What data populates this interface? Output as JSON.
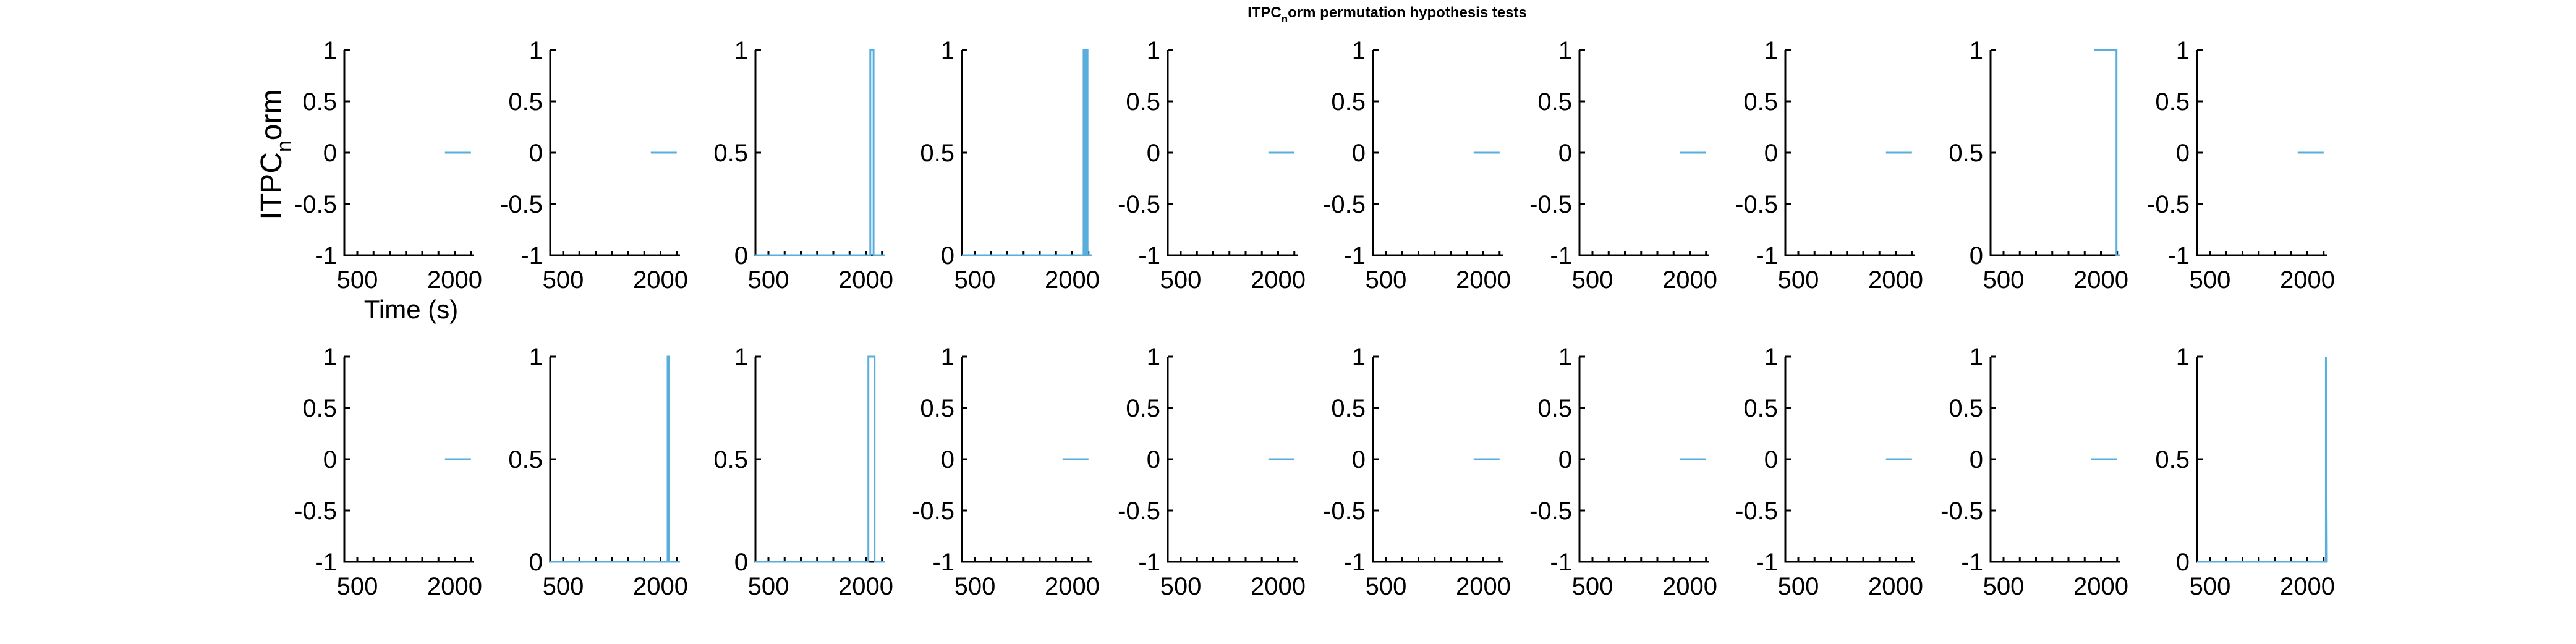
{
  "figure": {
    "title_main": "ITPC",
    "title_sub": "n",
    "title_rest": "orm permutation hypothesis tests"
  },
  "colors": {
    "series": "#5aaedc",
    "axis": "#000000"
  },
  "chart_data": {
    "type": "line",
    "title": "ITPC_norm permutation hypothesis tests",
    "ylabel": {
      "main": "ITPC",
      "sub": "n",
      "rest": "orm"
    },
    "xlabel": "Time (s)",
    "xlim": [
      300,
      2300
    ],
    "xticks": [
      500,
      2000
    ],
    "xtick_labels": [
      "500",
      "2000"
    ],
    "grid": false,
    "panels": [
      {
        "ylim": [
          -1,
          1
        ],
        "yticks": [
          -1,
          -0.5,
          0,
          0.5,
          1
        ],
        "ytick_labels": [
          "-1",
          "-0.5",
          "0",
          "0.5",
          "1"
        ],
        "x": [
          1850,
          2250
        ],
        "y": [
          0,
          0
        ]
      },
      {
        "ylim": [
          -1,
          1
        ],
        "yticks": [
          -1,
          -0.5,
          0,
          0.5,
          1
        ],
        "ytick_labels": [
          "-1",
          "-0.5",
          "0",
          "0.5",
          "1"
        ],
        "x": [
          1850,
          2250
        ],
        "y": [
          0,
          0
        ]
      },
      {
        "ylim": [
          0,
          1
        ],
        "yticks": [
          0,
          0.5,
          1
        ],
        "ytick_labels": [
          "0",
          "0.5",
          "1"
        ],
        "x": [
          300,
          2070,
          2070,
          2120,
          2120,
          2300
        ],
        "y": [
          0,
          0,
          1,
          1,
          0,
          0
        ]
      },
      {
        "ylim": [
          0,
          1
        ],
        "yticks": [
          0,
          0.5,
          1
        ],
        "ytick_labels": [
          "0",
          "0.5",
          "1"
        ],
        "x": [
          300,
          2175,
          2175,
          2190,
          2190,
          2220,
          2220,
          2235,
          2235,
          2300
        ],
        "y": [
          0,
          0,
          1,
          1,
          0,
          0,
          1,
          1,
          0,
          0
        ]
      },
      {
        "ylim": [
          -1,
          1
        ],
        "yticks": [
          -1,
          -0.5,
          0,
          0.5,
          1
        ],
        "ytick_labels": [
          "-1",
          "-0.5",
          "0",
          "0.5",
          "1"
        ],
        "x": [
          1850,
          2250
        ],
        "y": [
          0,
          0
        ]
      },
      {
        "ylim": [
          -1,
          1
        ],
        "yticks": [
          -1,
          -0.5,
          0,
          0.5,
          1
        ],
        "ytick_labels": [
          "-1",
          "-0.5",
          "0",
          "0.5",
          "1"
        ],
        "x": [
          1850,
          2250
        ],
        "y": [
          0,
          0
        ]
      },
      {
        "ylim": [
          -1,
          1
        ],
        "yticks": [
          -1,
          -0.5,
          0,
          0.5,
          1
        ],
        "ytick_labels": [
          "-1",
          "-0.5",
          "0",
          "0.5",
          "1"
        ],
        "x": [
          1850,
          2250
        ],
        "y": [
          0,
          0
        ]
      },
      {
        "ylim": [
          -1,
          1
        ],
        "yticks": [
          -1,
          -0.5,
          0,
          0.5,
          1
        ],
        "ytick_labels": [
          "-1",
          "-0.5",
          "0",
          "0.5",
          "1"
        ],
        "x": [
          1850,
          2250
        ],
        "y": [
          0,
          0
        ]
      },
      {
        "ylim": [
          0,
          1
        ],
        "yticks": [
          0,
          0.5,
          1
        ],
        "ytick_labels": [
          "0",
          "0.5",
          "1"
        ],
        "x": [
          1900,
          2240,
          2240,
          2300
        ],
        "y": [
          1,
          1,
          0,
          0
        ]
      },
      {
        "ylim": [
          -1,
          1
        ],
        "yticks": [
          -1,
          -0.5,
          0,
          0.5,
          1
        ],
        "ytick_labels": [
          "-1",
          "-0.5",
          "0",
          "0.5",
          "1"
        ],
        "x": [
          1850,
          2250
        ],
        "y": [
          0,
          0
        ]
      },
      {
        "ylim": [
          -1,
          1
        ],
        "yticks": [
          -1,
          -0.5,
          0,
          0.5,
          1
        ],
        "ytick_labels": [
          "-1",
          "-0.5",
          "0",
          "0.5",
          "1"
        ],
        "x": [
          1850,
          2250
        ],
        "y": [
          0,
          0
        ]
      },
      {
        "ylim": [
          0,
          1
        ],
        "yticks": [
          0,
          0.5,
          1
        ],
        "ytick_labels": [
          "0",
          "0.5",
          "1"
        ],
        "x": [
          300,
          2110,
          2110,
          2125,
          2125,
          2300
        ],
        "y": [
          0,
          0,
          1,
          1,
          0,
          0
        ]
      },
      {
        "ylim": [
          0,
          1
        ],
        "yticks": [
          0,
          0.5,
          1
        ],
        "ytick_labels": [
          "0",
          "0.5",
          "1"
        ],
        "x": [
          300,
          2040,
          2040,
          2135,
          2135,
          2300
        ],
        "y": [
          0,
          0,
          1,
          1,
          0,
          0
        ]
      },
      {
        "ylim": [
          -1,
          1
        ],
        "yticks": [
          -1,
          -0.5,
          0,
          0.5,
          1
        ],
        "ytick_labels": [
          "-1",
          "-0.5",
          "0",
          "0.5",
          "1"
        ],
        "x": [
          1850,
          2250
        ],
        "y": [
          0,
          0
        ]
      },
      {
        "ylim": [
          -1,
          1
        ],
        "yticks": [
          -1,
          -0.5,
          0,
          0.5,
          1
        ],
        "ytick_labels": [
          "-1",
          "-0.5",
          "0",
          "0.5",
          "1"
        ],
        "x": [
          1850,
          2250
        ],
        "y": [
          0,
          0
        ]
      },
      {
        "ylim": [
          -1,
          1
        ],
        "yticks": [
          -1,
          -0.5,
          0,
          0.5,
          1
        ],
        "ytick_labels": [
          "-1",
          "-0.5",
          "0",
          "0.5",
          "1"
        ],
        "x": [
          1850,
          2250
        ],
        "y": [
          0,
          0
        ]
      },
      {
        "ylim": [
          -1,
          1
        ],
        "yticks": [
          -1,
          -0.5,
          0,
          0.5,
          1
        ],
        "ytick_labels": [
          "-1",
          "-0.5",
          "0",
          "0.5",
          "1"
        ],
        "x": [
          1850,
          2250
        ],
        "y": [
          0,
          0
        ]
      },
      {
        "ylim": [
          -1,
          1
        ],
        "yticks": [
          -1,
          -0.5,
          0,
          0.5,
          1
        ],
        "ytick_labels": [
          "-1",
          "-0.5",
          "0",
          "0.5",
          "1"
        ],
        "x": [
          1850,
          2250
        ],
        "y": [
          0,
          0
        ]
      },
      {
        "ylim": [
          -1,
          1
        ],
        "yticks": [
          -1,
          -0.5,
          0,
          0.5,
          1
        ],
        "ytick_labels": [
          "-1",
          "-0.5",
          "0",
          "0.5",
          "1"
        ],
        "x": [
          1850,
          2250
        ],
        "y": [
          0,
          0
        ]
      },
      {
        "ylim": [
          0,
          1
        ],
        "yticks": [
          0,
          0.5,
          1
        ],
        "ytick_labels": [
          "0",
          "0.5",
          "1"
        ],
        "x": [
          300,
          2285,
          2285,
          2300
        ],
        "y": [
          0,
          0,
          1,
          0
        ]
      }
    ]
  }
}
